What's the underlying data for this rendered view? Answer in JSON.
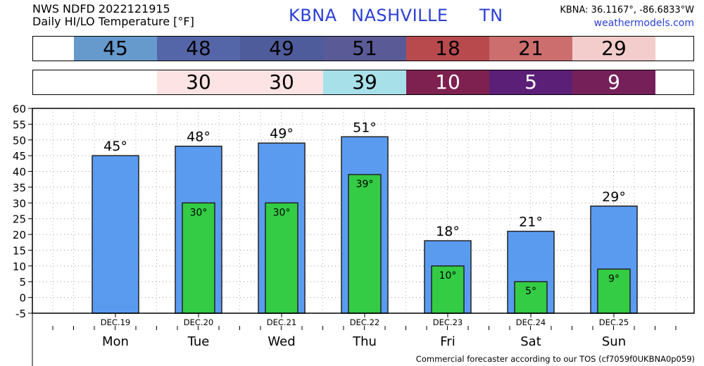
{
  "header": {
    "source": "NWS NDFD 2022121915",
    "subtitle": "Daily HI/LO Temperature [°F]",
    "station_id": "KBNA",
    "station_city": "NASHVILLE",
    "station_state": "TN",
    "coords": "KBNA: 36.1167°, -86.6833°W",
    "site": "weathermodels.com"
  },
  "footer": {
    "note": "Commercial forecaster according to our TOS (cf7059f0UKBNA0p059)"
  },
  "hi_strip": [
    {
      "value": "45",
      "color": "#6699cc"
    },
    {
      "value": "48",
      "color": "#5566a8"
    },
    {
      "value": "49",
      "color": "#4f5c9c"
    },
    {
      "value": "51",
      "color": "#5a5a96"
    },
    {
      "value": "18",
      "color": "#b84a4e"
    },
    {
      "value": "21",
      "color": "#cc6e6e"
    },
    {
      "value": "29",
      "color": "#f3cccc"
    }
  ],
  "lo_strip": [
    {
      "value": "",
      "color": "#ffffff"
    },
    {
      "value": "30",
      "color": "#fde3e3"
    },
    {
      "value": "30",
      "color": "#fde3e3"
    },
    {
      "value": "39",
      "color": "#a8e0ea"
    },
    {
      "value": "10",
      "color": "#7e2150",
      "text_color": "#ffffff"
    },
    {
      "value": "5",
      "color": "#5c1f78",
      "text_color": "#ffffff"
    },
    {
      "value": "9",
      "color": "#76205a",
      "text_color": "#ffffff"
    }
  ],
  "chart_data": {
    "type": "bar",
    "categories": [
      "Mon",
      "Tue",
      "Wed",
      "Thu",
      "Fri",
      "Sat",
      "Sun"
    ],
    "dates": [
      "DEC.19",
      "DEC.20",
      "DEC.21",
      "DEC.22",
      "DEC.23",
      "DEC.24",
      "DEC.25"
    ],
    "series": [
      {
        "values": [
          45,
          48,
          49,
          51,
          18,
          21,
          29
        ],
        "labels": [
          "45°",
          "48°",
          "49°",
          "51°",
          "18°",
          "21°",
          "29°"
        ],
        "color": "#5a9bf0"
      },
      {
        "values": [
          null,
          30,
          30,
          39,
          10,
          5,
          9
        ],
        "labels": [
          "",
          "30°",
          "30°",
          "39°",
          "10°",
          "5°",
          "9°"
        ],
        "color": "#33cc44"
      }
    ],
    "ylim": [
      -5,
      60
    ],
    "yticks": [
      "-5",
      "0",
      "5",
      "10",
      "15",
      "20",
      "25",
      "30",
      "35",
      "40",
      "45",
      "50",
      "55",
      "60"
    ],
    "grid": true
  }
}
